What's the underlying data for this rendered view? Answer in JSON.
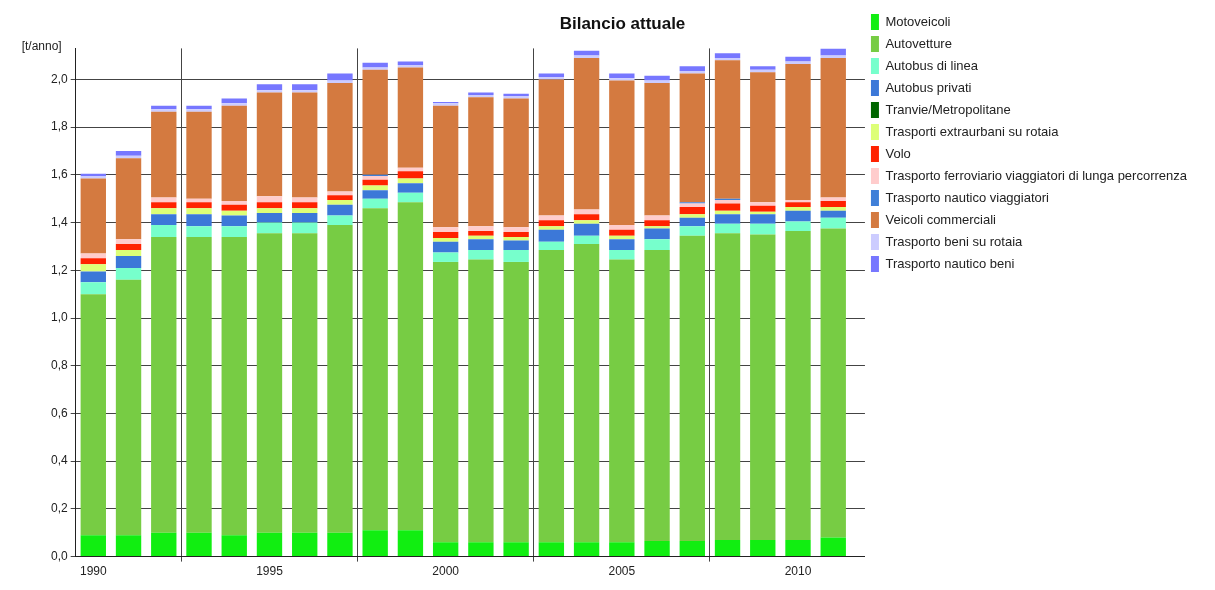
{
  "chart_data": {
    "type": "bar",
    "title": "Bilancio attuale",
    "ylabel": "[t/anno]",
    "stacked": true,
    "grid": true,
    "legend": "top right",
    "x": [
      1990,
      1991,
      1992,
      1993,
      1994,
      1995,
      1996,
      1997,
      1998,
      1999,
      2000,
      2001,
      2002,
      2003,
      2004,
      2005,
      2006,
      2007,
      2008,
      2009,
      2010,
      2011
    ],
    "xlim": [
      1989.5,
      2011.9
    ],
    "xticks": [
      1990,
      1995,
      2000,
      2005,
      2010
    ],
    "ylim": [
      0,
      2.13
    ],
    "yticks": [
      {
        "value": 0,
        "label": "0,0"
      },
      {
        "value": 0.2,
        "label": "0,2"
      },
      {
        "value": 0.4,
        "label": "0,4"
      },
      {
        "value": 0.6,
        "label": "0,6"
      },
      {
        "value": 0.8,
        "label": "0,8"
      },
      {
        "value": 1.0,
        "label": "1,0"
      },
      {
        "value": 1.2,
        "label": "1,2"
      },
      {
        "value": 1.4,
        "label": "1,4"
      },
      {
        "value": 1.6,
        "label": "1,6"
      },
      {
        "value": 1.8,
        "label": "1,8"
      },
      {
        "value": 2.0,
        "label": "2,0"
      }
    ],
    "series": [
      {
        "name": "Motoveicoli",
        "color": "#11ee11",
        "values": [
          0.09,
          0.09,
          0.1,
          0.1,
          0.09,
          0.1,
          0.1,
          0.1,
          0.11,
          0.11,
          0.06,
          0.06,
          0.06,
          0.06,
          0.06,
          0.06,
          0.065,
          0.065,
          0.07,
          0.07,
          0.07,
          0.08
        ]
      },
      {
        "name": "Autovetture",
        "color": "#77cc44",
        "values": [
          1.01,
          1.07,
          1.24,
          1.24,
          1.25,
          1.255,
          1.255,
          1.29,
          1.35,
          1.375,
          1.175,
          1.185,
          1.175,
          1.225,
          1.25,
          1.185,
          1.22,
          1.28,
          1.285,
          1.28,
          1.295,
          1.295
        ]
      },
      {
        "name": "Autobus di linea",
        "color": "#77ffcc",
        "values": [
          0.05,
          0.05,
          0.05,
          0.045,
          0.045,
          0.045,
          0.045,
          0.04,
          0.04,
          0.04,
          0.04,
          0.04,
          0.05,
          0.035,
          0.035,
          0.04,
          0.045,
          0.04,
          0.04,
          0.045,
          0.04,
          0.045
        ]
      },
      {
        "name": "Autobus privati",
        "color": "#3c78d8",
        "values": [
          0.045,
          0.05,
          0.045,
          0.05,
          0.045,
          0.04,
          0.04,
          0.045,
          0.035,
          0.04,
          0.045,
          0.045,
          0.04,
          0.05,
          0.05,
          0.045,
          0.045,
          0.035,
          0.04,
          0.04,
          0.045,
          0.03
        ]
      },
      {
        "name": "Tranvie/Metropolitane",
        "color": "#006600",
        "values": [
          0,
          0,
          0,
          0,
          0,
          0,
          0,
          0,
          0,
          0,
          0,
          0,
          0,
          0,
          0,
          0,
          0,
          0,
          0,
          0,
          0,
          0
        ]
      },
      {
        "name": "Trasporti extraurbani su rotaia",
        "color": "#ddff77",
        "values": [
          0.03,
          0.025,
          0.025,
          0.025,
          0.02,
          0.02,
          0.02,
          0.02,
          0.02,
          0.02,
          0.015,
          0.015,
          0.015,
          0.015,
          0.015,
          0.015,
          0.01,
          0.015,
          0.015,
          0.01,
          0.015,
          0.015
        ]
      },
      {
        "name": "Volo",
        "color": "#ff2200",
        "values": [
          0.025,
          0.025,
          0.025,
          0.025,
          0.025,
          0.025,
          0.025,
          0.02,
          0.025,
          0.03,
          0.025,
          0.02,
          0.02,
          0.025,
          0.025,
          0.025,
          0.025,
          0.03,
          0.03,
          0.025,
          0.02,
          0.025
        ]
      },
      {
        "name": "Trasporto ferroviario viaggiatori di lunga percorrenza",
        "color": "#ffcccc",
        "values": [
          0.02,
          0.02,
          0.02,
          0.015,
          0.015,
          0.025,
          0.02,
          0.015,
          0.015,
          0.015,
          0.02,
          0.02,
          0.02,
          0.02,
          0.02,
          0.02,
          0.02,
          0.015,
          0.015,
          0.015,
          0.01,
          0.015
        ]
      },
      {
        "name": "Trasporto nautico viaggiatori",
        "color": "#3f7fd8",
        "values": [
          0,
          0,
          0,
          0,
          0,
          0,
          0,
          0,
          0.005,
          0,
          0,
          0,
          0,
          0,
          0,
          0,
          0,
          0.005,
          0.005,
          0,
          0,
          0
        ]
      },
      {
        "name": "Veicoli commerciali",
        "color": "#d47a40",
        "values": [
          0.315,
          0.34,
          0.36,
          0.365,
          0.4,
          0.435,
          0.44,
          0.455,
          0.44,
          0.42,
          0.51,
          0.54,
          0.54,
          0.57,
          0.635,
          0.605,
          0.555,
          0.54,
          0.58,
          0.545,
          0.57,
          0.585
        ]
      },
      {
        "name": "Trasporto beni su rotaia",
        "color": "#ccccff",
        "values": [
          0.01,
          0.01,
          0.01,
          0.01,
          0.01,
          0.01,
          0.01,
          0.01,
          0.01,
          0.01,
          0.01,
          0.01,
          0.01,
          0.01,
          0.01,
          0.01,
          0.01,
          0.01,
          0.01,
          0.01,
          0.01,
          0.01
        ]
      },
      {
        "name": "Trasporto nautico beni",
        "color": "#7777ff",
        "values": [
          0.01,
          0.02,
          0.015,
          0.015,
          0.02,
          0.025,
          0.025,
          0.03,
          0.02,
          0.015,
          0.005,
          0.01,
          0.01,
          0.015,
          0.02,
          0.02,
          0.02,
          0.02,
          0.02,
          0.015,
          0.02,
          0.03
        ]
      }
    ]
  }
}
